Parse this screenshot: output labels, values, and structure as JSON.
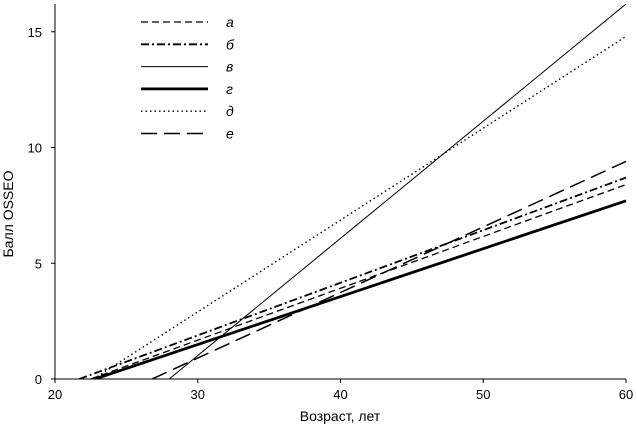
{
  "chart_data": {
    "type": "line",
    "title": "",
    "xlabel": "Возраст, лет",
    "ylabel": "Балл OSSEO",
    "xlim": [
      20,
      60
    ],
    "ylim": [
      0,
      16.2
    ],
    "x_ticks": [
      "20",
      "30",
      "40",
      "50",
      "60"
    ],
    "y_ticks": [
      "0",
      "5",
      "10",
      "15"
    ],
    "grid": false,
    "legend_position": "top-left",
    "series": [
      {
        "name": "а",
        "style": "dashed",
        "x": [
          22.5,
          60
        ],
        "y": [
          0.0,
          8.4
        ]
      },
      {
        "name": "б",
        "style": "dashdot",
        "x": [
          21.7,
          60
        ],
        "y": [
          0.0,
          8.7
        ]
      },
      {
        "name": "в",
        "style": "thin-solid",
        "x": [
          28.0,
          60
        ],
        "y": [
          0.0,
          16.2
        ]
      },
      {
        "name": "г",
        "style": "thick-solid",
        "x": [
          22.8,
          60
        ],
        "y": [
          0.0,
          7.7
        ]
      },
      {
        "name": "д",
        "style": "dotted",
        "x": [
          22.7,
          60
        ],
        "y": [
          0.0,
          14.8
        ]
      },
      {
        "name": "е",
        "style": "longdash",
        "x": [
          26.8,
          60
        ],
        "y": [
          0.0,
          9.4
        ]
      }
    ]
  }
}
